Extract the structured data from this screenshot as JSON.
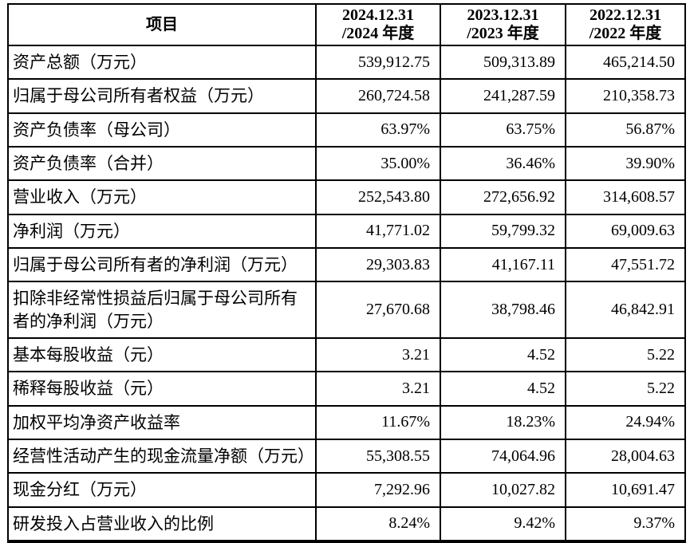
{
  "colors": {
    "background": "#ffffff",
    "border": "#000000",
    "text": "#000000"
  },
  "table": {
    "columns": {
      "item": "项目",
      "y2024": {
        "line1": "2024.12.31",
        "line2": "/2024 年度"
      },
      "y2023": {
        "line1": "2023.12.31",
        "line2": "/2023 年度"
      },
      "y2022": {
        "line1": "2022.12.31",
        "line2": "/2022 年度"
      }
    },
    "rows": [
      {
        "label": "资产总额（万元）",
        "values": [
          "539,912.75",
          "509,313.89",
          "465,214.50"
        ]
      },
      {
        "label": "归属于母公司所有者权益（万元）",
        "values": [
          "260,724.58",
          "241,287.59",
          "210,358.73"
        ]
      },
      {
        "label": "资产负债率（母公司）",
        "values": [
          "63.97%",
          "63.75%",
          "56.87%"
        ]
      },
      {
        "label": "资产负债率（合并）",
        "values": [
          "35.00%",
          "36.46%",
          "39.90%"
        ]
      },
      {
        "label": "营业收入（万元）",
        "values": [
          "252,543.80",
          "272,656.92",
          "314,608.57"
        ]
      },
      {
        "label": "净利润（万元）",
        "values": [
          "41,771.02",
          "59,799.32",
          "69,009.63"
        ]
      },
      {
        "label": "归属于母公司所有者的净利润（万元）",
        "values": [
          "29,303.83",
          "41,167.11",
          "47,551.72"
        ]
      },
      {
        "label": "扣除非经常性损益后归属于母公司所有者的净利润（万元）",
        "values": [
          "27,670.68",
          "38,798.46",
          "46,842.91"
        ]
      },
      {
        "label": "基本每股收益（元）",
        "values": [
          "3.21",
          "4.52",
          "5.22"
        ]
      },
      {
        "label": "稀释每股收益（元）",
        "values": [
          "3.21",
          "4.52",
          "5.22"
        ]
      },
      {
        "label": "加权平均净资产收益率",
        "values": [
          "11.67%",
          "18.23%",
          "24.94%"
        ]
      },
      {
        "label": "经营性活动产生的现金流量净额（万元）",
        "values": [
          "55,308.55",
          "74,064.96",
          "28,004.63"
        ]
      },
      {
        "label": "现金分红（万元）",
        "values": [
          "7,292.96",
          "10,027.82",
          "10,691.47"
        ]
      },
      {
        "label": "研发投入占营业收入的比例",
        "values": [
          "8.24%",
          "9.42%",
          "9.37%"
        ]
      }
    ]
  }
}
